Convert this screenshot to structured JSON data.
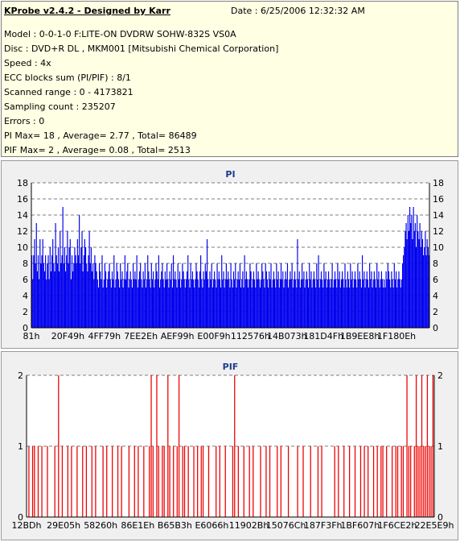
{
  "header": {
    "title": "KProbe v2.4.2 - Designed by Karr",
    "date": "Date : 6/25/2006 12:32:32 AM",
    "lines": [
      "Model : 0-0-1-0 F:LITE-ON DVDRW SOHW-832S  VS0A",
      "Disc : DVD+R DL , MKM001 [Mitsubishi Chemical Corporation]",
      "Speed : 4x",
      "ECC blocks sum (PI/PIF) : 8/1",
      "Scanned range : 0 - 4173821",
      "Sampling count : 235207",
      "Errors : 0",
      "PI Max= 18 , Average= 2.77 , Total= 86489",
      "PIF Max= 2 , Average= 0.08 , Total= 2513"
    ]
  },
  "chart_data": [
    {
      "type": "bar",
      "title": "PI",
      "ylim": [
        0,
        18
      ],
      "yticks": [
        "0",
        "2",
        "4",
        "6",
        "8",
        "10",
        "12",
        "14",
        "16",
        "18"
      ],
      "xticks": [
        "81h",
        "20F49h",
        "4FF79h",
        "7EE2Eh",
        "AEF99h",
        "E00F9h",
        "112576h",
        "14B073h",
        "181D4Fh",
        "1B9EE8h",
        "1F180Eh"
      ],
      "grid": true,
      "color": "#0000ee",
      "series": [
        {
          "values": [
            9,
            6,
            9,
            11,
            8,
            13,
            7,
            9,
            6,
            11,
            8,
            9,
            11,
            8,
            7,
            9,
            6,
            8,
            9,
            6,
            10,
            7,
            9,
            11,
            8,
            7,
            13,
            9,
            8,
            10,
            7,
            12,
            8,
            9,
            15,
            8,
            10,
            7,
            9,
            12,
            8,
            10,
            11,
            6,
            9,
            7,
            8,
            10,
            9,
            8,
            11,
            9,
            14,
            8,
            10,
            12,
            7,
            9,
            11,
            10,
            8,
            7,
            9,
            12,
            8,
            10,
            7,
            8,
            6,
            9,
            8,
            7,
            6,
            5,
            8,
            7,
            6,
            9,
            5,
            6,
            8,
            7,
            5,
            6,
            7,
            8,
            6,
            5,
            7,
            6,
            9,
            5,
            6,
            8,
            7,
            6,
            5,
            8,
            6,
            7,
            5,
            6,
            9,
            6,
            7,
            8,
            5,
            6,
            7,
            6,
            5,
            8,
            6,
            7,
            6,
            9,
            5,
            6,
            7,
            8,
            6,
            5,
            7,
            6,
            8,
            5,
            6,
            9,
            7,
            6,
            5,
            8,
            6,
            7,
            5,
            6,
            8,
            7,
            6,
            9,
            5,
            6,
            7,
            8,
            6,
            5,
            7,
            6,
            8,
            6,
            5,
            7,
            6,
            8,
            5,
            9,
            6,
            7,
            6,
            5,
            8,
            6,
            7,
            5,
            6,
            8,
            7,
            6,
            5,
            6,
            7,
            9,
            6,
            5,
            8,
            6,
            7,
            6,
            5,
            6,
            8,
            7,
            6,
            5,
            7,
            9,
            6,
            5,
            7,
            6,
            8,
            7,
            11,
            6,
            5,
            7,
            6,
            8,
            5,
            6,
            7,
            6,
            5,
            8,
            6,
            7,
            6,
            5,
            9,
            6,
            7,
            5,
            6,
            8,
            6,
            7,
            6,
            5,
            8,
            6,
            5,
            7,
            6,
            8,
            5,
            6,
            7,
            6,
            8,
            5,
            6,
            7,
            5,
            9,
            6,
            7,
            6,
            5,
            6,
            8,
            7,
            5,
            6,
            7,
            6,
            5,
            8,
            6,
            7,
            6,
            5,
            6,
            8,
            7,
            6,
            5,
            8,
            7,
            6,
            5,
            7,
            6,
            8,
            5,
            6,
            7,
            6,
            5,
            8,
            6,
            7,
            5,
            6,
            8,
            6,
            7,
            5,
            6,
            7,
            6,
            8,
            5,
            6,
            7,
            6,
            8,
            5,
            6,
            7,
            6,
            5,
            11,
            6,
            7,
            5,
            6,
            8,
            6,
            7,
            5,
            6,
            7,
            6,
            5,
            8,
            6,
            7,
            5,
            6,
            7,
            6,
            5,
            8,
            6,
            9,
            5,
            6,
            7,
            6,
            5,
            8,
            6,
            7,
            5,
            6,
            7,
            6,
            5,
            6,
            8,
            5,
            6,
            7,
            6,
            5,
            8,
            6,
            7,
            5,
            6,
            7,
            6,
            5,
            8,
            6,
            5,
            7,
            6,
            5,
            8,
            6,
            7,
            5,
            6,
            7,
            6,
            5,
            8,
            6,
            7,
            6,
            5,
            9,
            6,
            7,
            5,
            6,
            7,
            6,
            5,
            8,
            6,
            7,
            5,
            6,
            7,
            6,
            5,
            8,
            6,
            7,
            5,
            6,
            7,
            6,
            5,
            6,
            5,
            7,
            6,
            8,
            7,
            6,
            5,
            7,
            6,
            5,
            8,
            6,
            7,
            5,
            6,
            7,
            6,
            5,
            6,
            8,
            9,
            10,
            12,
            13,
            11,
            14,
            12,
            15,
            13,
            14,
            11,
            15,
            12,
            13,
            10,
            14,
            12,
            11,
            13,
            10,
            12,
            11,
            9,
            10,
            12,
            9,
            11,
            10,
            9
          ]
        },
        {
          "values_note": ""
        }
      ]
    },
    {
      "type": "bar",
      "title": "PIF",
      "ylim": [
        0,
        2
      ],
      "yticks": [
        "0",
        "1",
        "2"
      ],
      "xticks": [
        "12BDh",
        "29E05h",
        "58260h",
        "86E1Eh",
        "B65B3h",
        "E6066h",
        "11902Bh",
        "15076Ch",
        "187F3Fh",
        "1BF607h",
        "1F6CE2h",
        "22E5E9h"
      ],
      "grid": true,
      "color": "#ee0000",
      "series": [
        {
          "values": [
            0,
            1,
            0,
            1,
            1,
            0,
            1,
            0,
            1,
            0,
            0,
            1,
            0,
            0,
            0,
            1,
            0,
            2,
            0,
            1,
            0,
            0,
            1,
            0,
            1,
            0,
            0,
            1,
            0,
            0,
            1,
            0,
            1,
            0,
            0,
            1,
            0,
            1,
            0,
            0,
            0,
            1,
            0,
            1,
            0,
            0,
            1,
            0,
            0,
            1,
            0,
            1,
            0,
            0,
            0,
            1,
            0,
            0,
            1,
            0,
            1,
            0,
            0,
            1,
            0,
            0,
            1,
            2,
            1,
            0,
            2,
            1,
            0,
            1,
            1,
            0,
            2,
            1,
            0,
            1,
            0,
            1,
            2,
            0,
            1,
            1,
            0,
            1,
            0,
            0,
            1,
            0,
            1,
            0,
            1,
            1,
            0,
            0,
            1,
            0,
            0,
            0,
            1,
            0,
            1,
            0,
            0,
            1,
            0,
            0,
            0,
            1,
            2,
            0,
            1,
            0,
            0,
            1,
            0,
            0,
            1,
            0,
            1,
            0,
            0,
            0,
            1,
            0,
            0,
            1,
            0,
            1,
            0,
            0,
            0,
            1,
            0,
            1,
            0,
            0,
            0,
            1,
            0,
            0,
            0,
            0,
            1,
            0,
            0,
            1,
            0,
            0,
            0,
            1,
            0,
            0,
            0,
            1,
            0,
            1,
            0,
            0,
            0,
            0,
            0,
            0,
            1,
            0,
            1,
            0,
            0,
            1,
            0,
            0,
            1,
            0,
            0,
            1,
            0,
            0,
            1,
            0,
            1,
            0,
            1,
            0,
            0,
            1,
            0,
            1,
            0,
            1,
            1,
            0,
            1,
            0,
            0,
            1,
            0,
            1,
            1,
            0,
            1,
            1,
            0,
            2,
            1,
            1,
            0,
            1,
            2,
            1,
            1,
            2,
            1,
            1,
            2,
            1,
            1,
            2
          ]
        }
      ]
    }
  ]
}
